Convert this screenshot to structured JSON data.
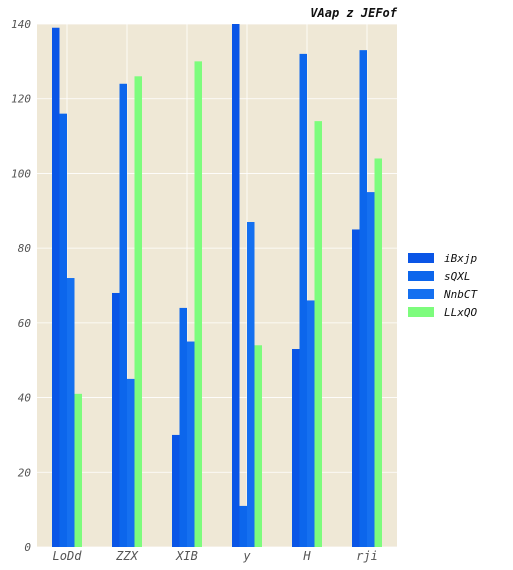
{
  "chart_data": {
    "type": "bar",
    "title": "VAap z JEFof",
    "xlabel": "",
    "ylabel": "",
    "categories": [
      "LoDd",
      "ZZX",
      "XIB",
      "y",
      "H",
      "rji"
    ],
    "series": [
      {
        "name": "iBxjp",
        "color": "#0a55e6",
        "values": [
          139,
          68,
          30,
          140,
          53,
          85
        ]
      },
      {
        "name": "sQXL",
        "color": "#0c66ec",
        "values": [
          116,
          124,
          64,
          11,
          132,
          133
        ]
      },
      {
        "name": "NnbCT",
        "color": "#1570f0",
        "values": [
          72,
          45,
          55,
          87,
          66,
          95
        ]
      },
      {
        "name": "LLxQO",
        "color": "#7dfc7d",
        "values": [
          41,
          126,
          130,
          54,
          114,
          104
        ]
      }
    ],
    "ylim": [
      0,
      140
    ],
    "yticks": [
      0,
      20,
      40,
      60,
      80,
      100,
      120,
      140
    ],
    "grid": true,
    "legend_position": "right",
    "background": "#efe8d6"
  }
}
